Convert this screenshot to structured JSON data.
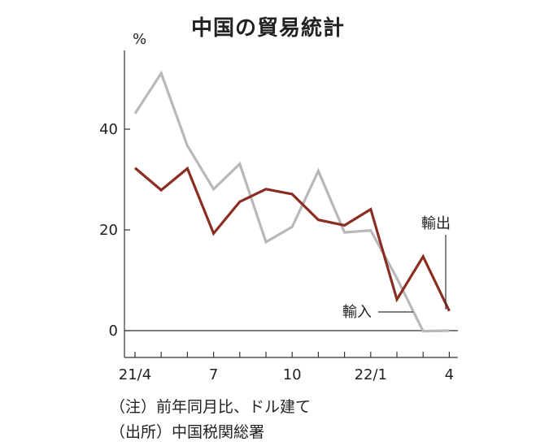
{
  "title": "中国の貿易統計",
  "unit_label": "%",
  "notes": {
    "note1": "（注）前年同月比、ドル建て",
    "note2": "（出所）中国税関総署"
  },
  "colors": {
    "export": "#8b2e22",
    "import": "#b8b8b8",
    "axis": "#333333"
  },
  "chart_data": {
    "type": "line",
    "title": "中国の貿易統計",
    "ylabel": "%",
    "xlabel": "",
    "ylim": [
      -5,
      55
    ],
    "y_ticks": [
      0,
      20,
      40
    ],
    "x": [
      "2021-04",
      "2021-05",
      "2021-06",
      "2021-07",
      "2021-08",
      "2021-09",
      "2021-10",
      "2021-11",
      "2021-12",
      "2022-01",
      "2022-02",
      "2022-03",
      "2022-04"
    ],
    "x_tick_labels": [
      {
        "index": 0,
        "label": "21/4"
      },
      {
        "index": 3,
        "label": "7"
      },
      {
        "index": 6,
        "label": "10"
      },
      {
        "index": 9,
        "label": "22/1"
      },
      {
        "index": 12,
        "label": "4"
      }
    ],
    "series": [
      {
        "name": "輸出",
        "color": "#8b2e22",
        "values": [
          32.3,
          27.9,
          32.2,
          19.3,
          25.6,
          28.1,
          27.1,
          22.0,
          20.9,
          24.1,
          6.2,
          14.7,
          3.9
        ]
      },
      {
        "name": "輸入",
        "color": "#b8b8b8",
        "values": [
          43.1,
          51.1,
          36.7,
          28.1,
          33.1,
          17.6,
          20.6,
          31.7,
          19.5,
          19.9,
          10.4,
          -0.1,
          0.0
        ]
      }
    ],
    "grid": false,
    "legend": "inline"
  }
}
